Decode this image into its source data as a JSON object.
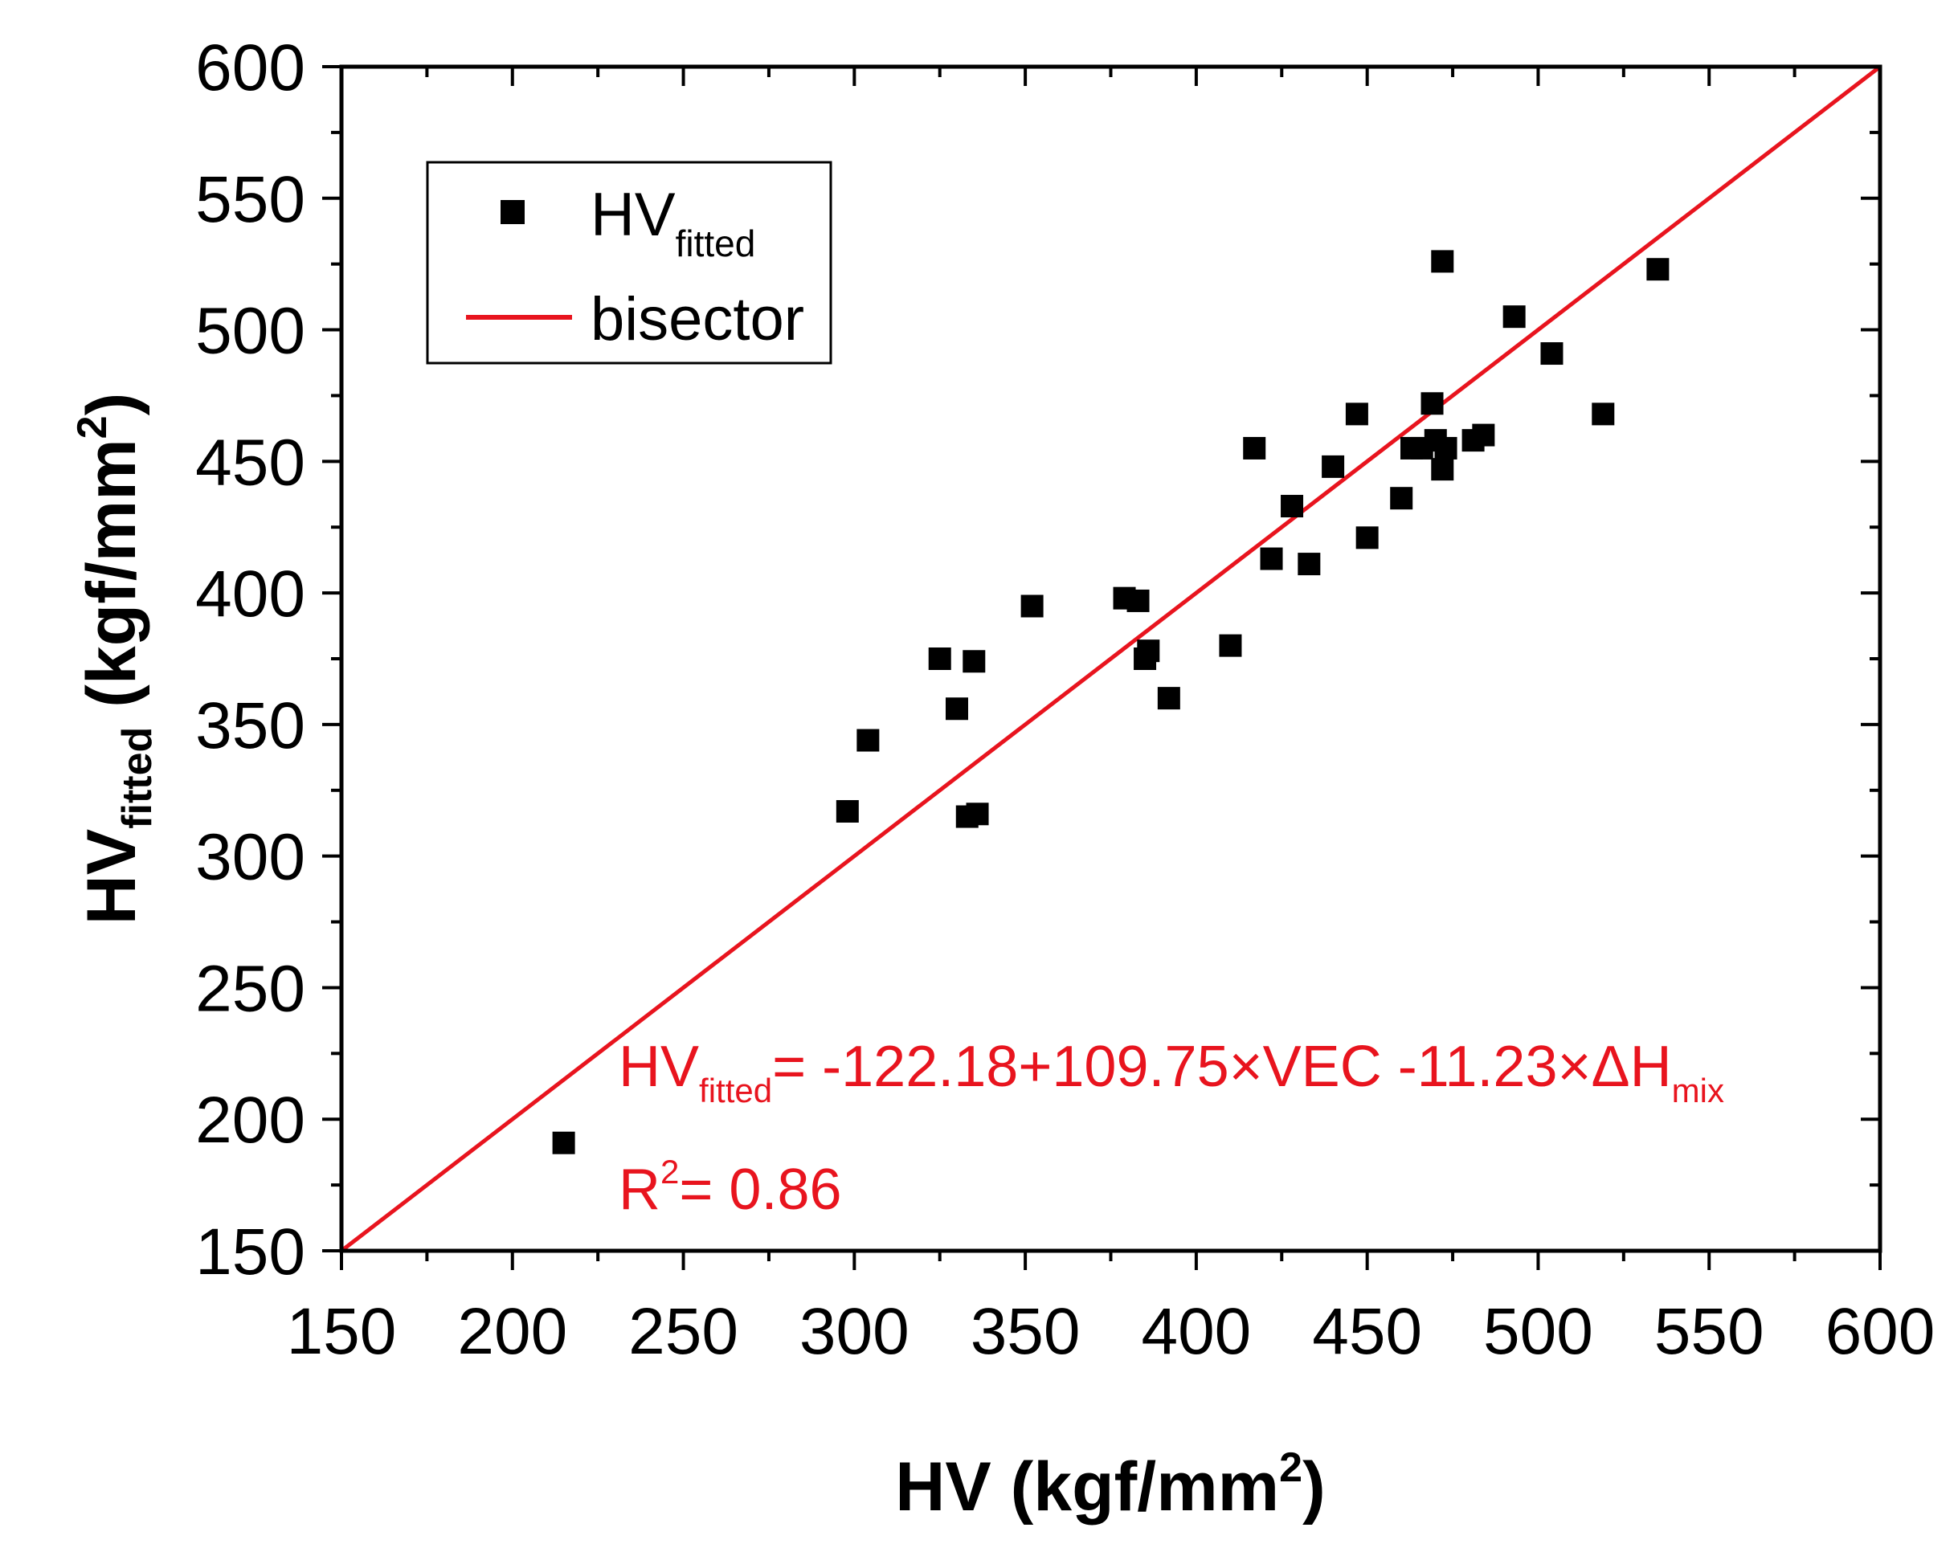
{
  "chart_data": {
    "type": "scatter",
    "xlabel": {
      "main": "HV (kgf/mm",
      "sup": "2",
      "end": ")"
    },
    "ylabel": {
      "main": "HV",
      "sub": "fitted",
      "rest": " (kgf/mm",
      "sup": "2",
      "end": ")"
    },
    "xlim": [
      150,
      600
    ],
    "ylim": [
      150,
      600
    ],
    "xticks": [
      150,
      200,
      250,
      300,
      350,
      400,
      450,
      500,
      550,
      600
    ],
    "yticks": [
      150,
      200,
      250,
      300,
      350,
      400,
      450,
      500,
      550,
      600
    ],
    "minor_step": 25,
    "grid": false,
    "legend_position": "top-left",
    "colors": {
      "points": "#000000",
      "bisector": "#e8141e",
      "annotation": "#e8141e"
    },
    "series": [
      {
        "name": "HV_fitted",
        "legend": {
          "main": "HV",
          "sub": "fitted"
        },
        "type": "scatter",
        "marker": "square",
        "points": [
          [
            215,
            191
          ],
          [
            298,
            317
          ],
          [
            304,
            344
          ],
          [
            325,
            375
          ],
          [
            330,
            356
          ],
          [
            333,
            315
          ],
          [
            335,
            374
          ],
          [
            336,
            316
          ],
          [
            352,
            395
          ],
          [
            379,
            398
          ],
          [
            383,
            397
          ],
          [
            385,
            375
          ],
          [
            386,
            378
          ],
          [
            392,
            360
          ],
          [
            410,
            380
          ],
          [
            417,
            455
          ],
          [
            422,
            413
          ],
          [
            428,
            433
          ],
          [
            433,
            411
          ],
          [
            440,
            448
          ],
          [
            447,
            468
          ],
          [
            450,
            421
          ],
          [
            460,
            436
          ],
          [
            463,
            455
          ],
          [
            466,
            455
          ],
          [
            469,
            472
          ],
          [
            470,
            458
          ],
          [
            472,
            526
          ],
          [
            472,
            447
          ],
          [
            473,
            455
          ],
          [
            481,
            458
          ],
          [
            484,
            460
          ],
          [
            493,
            505
          ],
          [
            504,
            491
          ],
          [
            519,
            468
          ],
          [
            535,
            523
          ]
        ]
      },
      {
        "name": "bisector",
        "legend": {
          "main": "bisector"
        },
        "type": "line",
        "points": [
          [
            150,
            150
          ],
          [
            600,
            600
          ]
        ]
      }
    ],
    "annotations": {
      "equation": {
        "lhs": "HV",
        "lhs_sub": "fitted",
        "body": "= -122.18+109.75×VEC -11.23×ΔH",
        "tail_sub": "mix"
      },
      "r2": {
        "base": "R",
        "sup": "2",
        "rest": "= 0.86"
      }
    }
  }
}
